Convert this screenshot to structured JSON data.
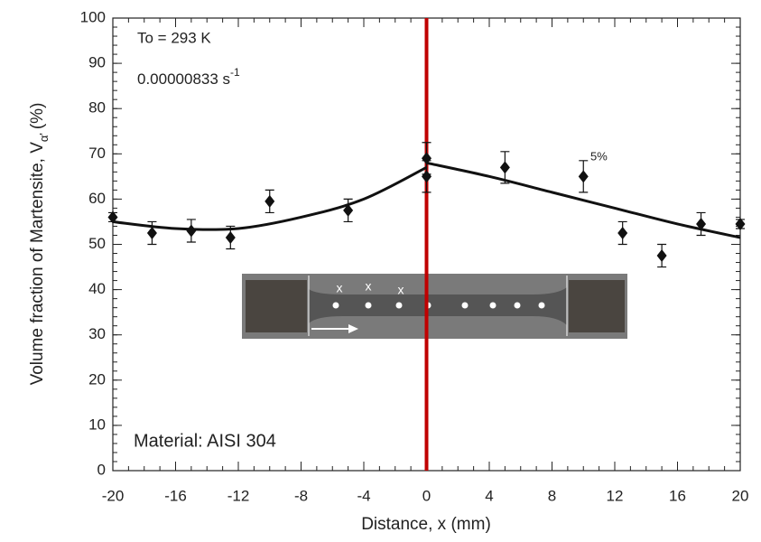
{
  "chart_data": {
    "type": "scatter",
    "x_label": "Distance, x (mm)",
    "y_label": {
      "main": "Volume fraction of Martensite, V",
      "sub": "α'",
      "unit": "(%)"
    },
    "x": [
      -20,
      -17.5,
      -15,
      -12.5,
      -10,
      -5,
      0,
      0,
      5,
      10,
      12.5,
      15,
      17.5,
      20
    ],
    "values": [
      56,
      52.5,
      53,
      51.5,
      59.5,
      57.5,
      69,
      65,
      67,
      65,
      52.5,
      47.5,
      54.5,
      54.5
    ],
    "errors": [
      1,
      2.5,
      2.5,
      2.5,
      2.5,
      2.5,
      3.5,
      3.5,
      3.5,
      3.5,
      2.5,
      2.5,
      2.5,
      1
    ],
    "color": "#111111",
    "fit_curves": [
      {
        "x": [
          -20,
          -16,
          -12,
          -8,
          -4,
          0
        ],
        "values": [
          55,
          53.5,
          53.5,
          56,
          60,
          67
        ],
        "color": "#111111"
      },
      {
        "x": [
          0,
          4,
          8,
          12,
          16,
          20
        ],
        "values": [
          68,
          65,
          61.5,
          58,
          54.5,
          51.5
        ],
        "color": "#111111"
      }
    ],
    "vline": {
      "x": 0,
      "color": "#c00000"
    },
    "xlim": [
      -20,
      20
    ],
    "xticks": [
      -20,
      -16,
      -12,
      -8,
      -4,
      0,
      4,
      8,
      12,
      16,
      20
    ],
    "x_minor_step": 1,
    "ylim": [
      0,
      100
    ],
    "yticks": [
      0,
      10,
      20,
      30,
      40,
      50,
      60,
      70,
      80,
      90,
      100
    ],
    "y_minor_step": 2,
    "annotations": {
      "temperature": "To = 293 K",
      "rate": "0.00000833 s",
      "rate_exp": "-1",
      "percent": "5%",
      "material": "Material: AISI 304"
    },
    "inset_labels": [
      "x",
      "x",
      "x"
    ]
  }
}
